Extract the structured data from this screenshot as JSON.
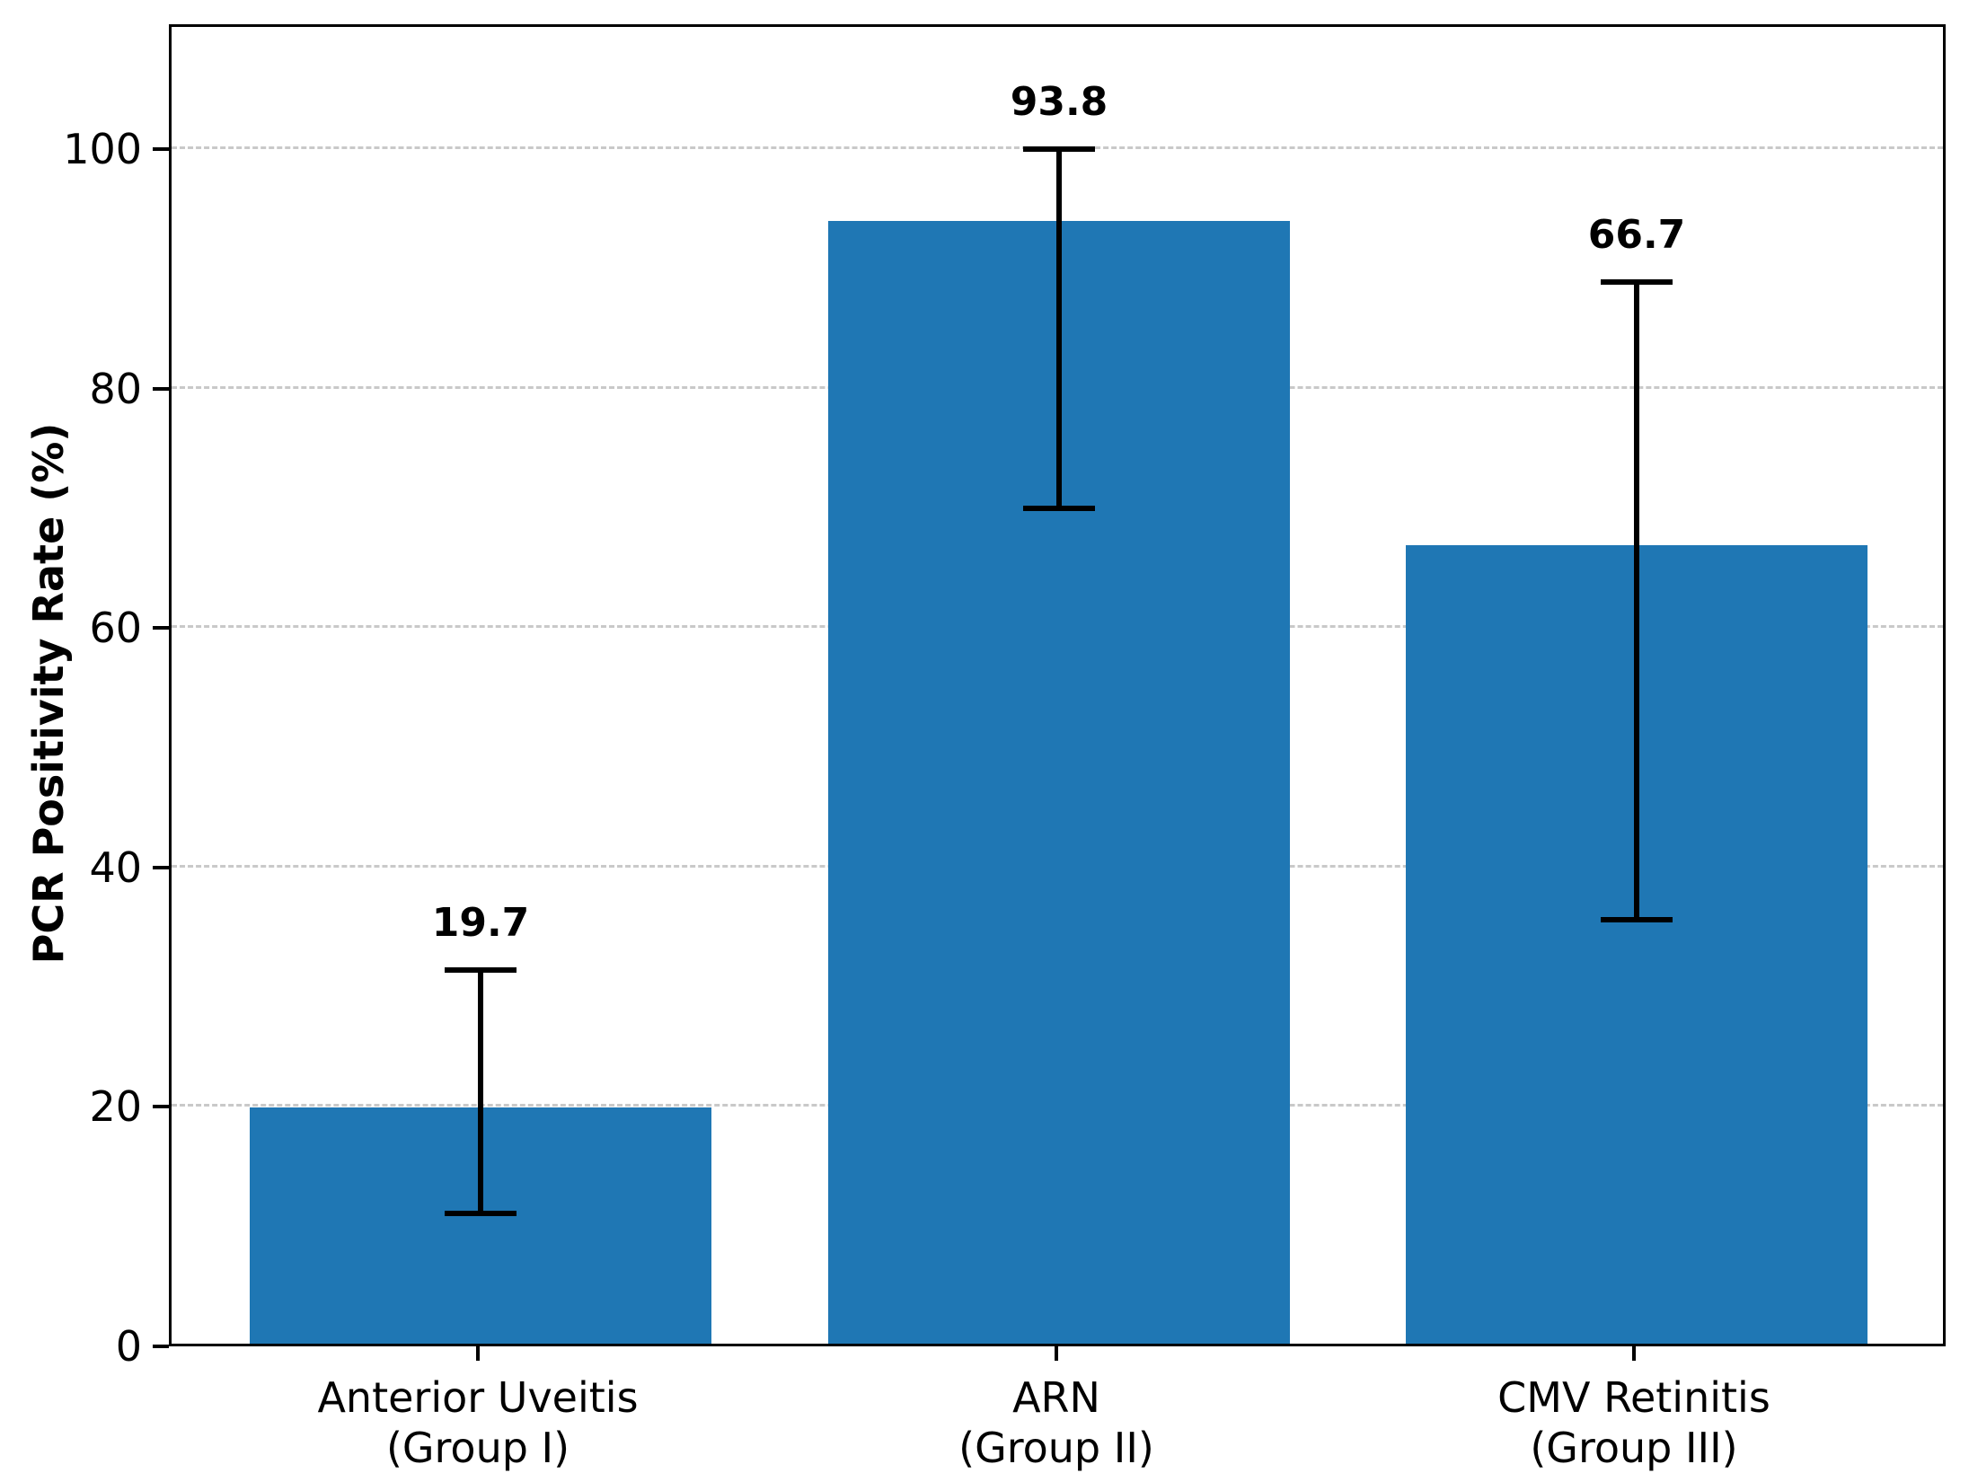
{
  "chart_data": {
    "type": "bar",
    "title": "",
    "xlabel": "",
    "ylabel": "PCR Positivity Rate (%)",
    "ylim": [
      0,
      110
    ],
    "yticks": [
      0,
      20,
      40,
      60,
      80,
      100
    ],
    "ytick_labels": [
      "0",
      "20",
      "40",
      "60",
      "80",
      "100"
    ],
    "grid": {
      "horizontal": true,
      "style": "dashed",
      "color": "#c9c9c9",
      "at": [
        20,
        40,
        60,
        80,
        100
      ]
    },
    "legend": "none",
    "bar_color": "#1f77b4",
    "error_bar_color": "#000000",
    "categories": [
      {
        "label": "Anterior Uveitis (Group I)",
        "lines": [
          "Anterior Uveitis",
          "(Group I)"
        ]
      },
      {
        "label": "ARN (Group II)",
        "lines": [
          "ARN",
          "(Group II)"
        ]
      },
      {
        "label": "CMV Retinitis (Group III)",
        "lines": [
          "CMV Retinitis",
          "(Group III)"
        ]
      }
    ],
    "values": [
      19.7,
      93.8,
      66.7
    ],
    "value_labels": [
      "19.7",
      "93.8",
      "66.7"
    ],
    "error_bars": [
      {
        "lower": 10.9,
        "upper": 31.2
      },
      {
        "lower": 69.8,
        "upper": 99.8
      },
      {
        "lower": 35.4,
        "upper": 88.7
      }
    ]
  }
}
